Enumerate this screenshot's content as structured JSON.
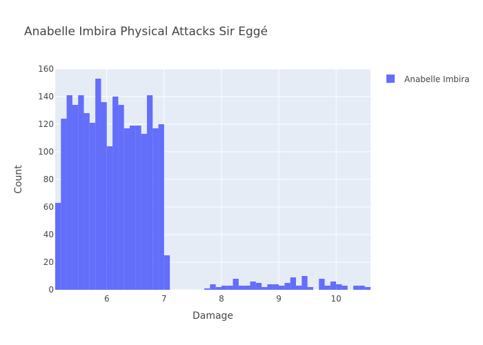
{
  "chart_data": {
    "type": "histogram",
    "title": "Anabelle Imbira Physical Attacks Sir Eggé",
    "xlabel": "Damage",
    "ylabel": "Count",
    "xlim": [
      5.1,
      10.6
    ],
    "ylim": [
      0,
      160
    ],
    "x_ticks": [
      6,
      7,
      8,
      9,
      10
    ],
    "y_ticks": [
      0,
      20,
      40,
      60,
      80,
      100,
      120,
      140,
      160
    ],
    "grid": true,
    "legend_position": "top-right",
    "colors": {
      "bar": "#636efa",
      "plot_bg": "#e5ecf6",
      "grid": "#ffffff"
    },
    "bin_start": 5.1,
    "bin_width": 0.1,
    "series": [
      {
        "name": "Anabelle Imbira",
        "values": [
          63,
          124,
          141,
          134,
          141,
          128,
          121,
          153,
          136,
          104,
          140,
          134,
          117,
          119,
          119,
          113,
          141,
          117,
          120,
          25,
          0,
          0,
          0,
          0,
          0,
          0,
          1,
          4,
          2,
          3,
          3,
          8,
          3,
          3,
          6,
          5,
          2,
          4,
          4,
          3,
          5,
          9,
          3,
          10,
          2,
          0,
          8,
          3,
          6,
          4,
          3,
          0,
          3,
          3,
          2
        ]
      }
    ]
  }
}
